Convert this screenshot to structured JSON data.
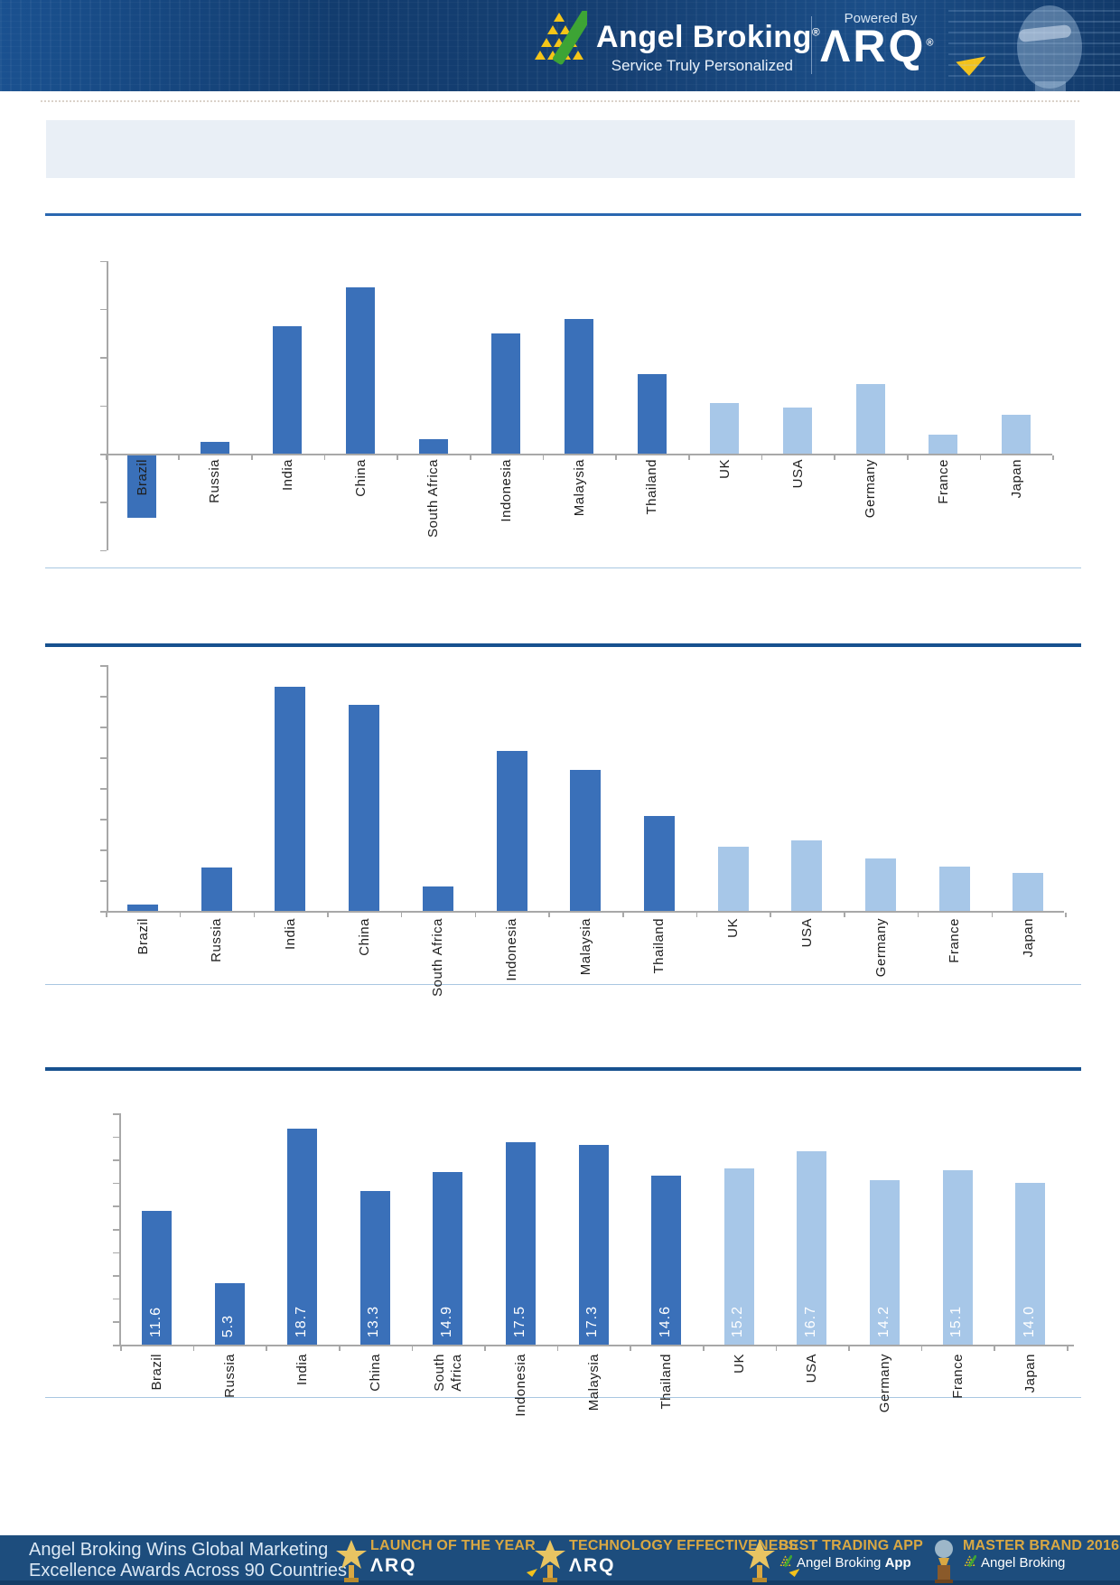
{
  "header": {
    "brand": "Angel Broking",
    "registered": "®",
    "tagline": "Service Truly Personalized",
    "powered_by": "Powered By",
    "arq_logo_text": "ΛRQ",
    "arq_registered": "®",
    "colors": {
      "header_bg": "#143f72",
      "arq_arrow": "#f2c21c"
    }
  },
  "title_box": {
    "text": ""
  },
  "chart_data": [
    {
      "type": "bar",
      "title": "",
      "categories": [
        "Brazil",
        "Russia",
        "India",
        "China",
        "South Africa",
        "Indonesia",
        "Malaysia",
        "Thailand",
        "UK",
        "USA",
        "Germany",
        "France",
        "Japan"
      ],
      "values": [
        -2.6,
        0.5,
        5.3,
        6.9,
        0.6,
        5.0,
        5.6,
        3.3,
        2.1,
        1.9,
        2.9,
        0.8,
        1.6
      ],
      "xlabel": "",
      "ylabel": "",
      "ylim": [
        -4,
        8
      ],
      "tick_step": 2,
      "grid": false,
      "legend": "none",
      "value_labels": false,
      "dark_count": 8,
      "colors": {
        "dark": "#3a70b9",
        "light": "#a7c7e8"
      }
    },
    {
      "type": "bar",
      "title": "",
      "categories": [
        "Brazil",
        "Russia",
        "India",
        "China",
        "South Africa",
        "Indonesia",
        "Malaysia",
        "Thailand",
        "UK",
        "USA",
        "Germany",
        "France",
        "Japan"
      ],
      "values": [
        0.2,
        1.4,
        7.3,
        6.7,
        0.8,
        5.2,
        4.6,
        3.1,
        2.1,
        2.3,
        1.7,
        1.45,
        1.25
      ],
      "xlabel": "",
      "ylabel": "",
      "ylim": [
        0,
        8
      ],
      "tick_step": 1,
      "grid": false,
      "legend": "none",
      "value_labels": false,
      "dark_count": 8,
      "colors": {
        "dark": "#3a70b9",
        "light": "#a7c7e8"
      }
    },
    {
      "type": "bar",
      "title": "",
      "categories": [
        "Brazil",
        "Russia",
        "India",
        "China",
        "South Africa",
        "Indonesia",
        "Malaysia",
        "Thailand",
        "UK",
        "USA",
        "Germany",
        "France",
        "Japan"
      ],
      "values": [
        11.6,
        5.3,
        18.7,
        13.3,
        14.9,
        17.5,
        17.3,
        14.6,
        15.2,
        16.7,
        14.2,
        15.1,
        14.0
      ],
      "value_label_texts": [
        "11.6",
        "5.3",
        "18.7",
        "13.3",
        "14.9",
        "17.5",
        "17.3",
        "14.6",
        "15.2",
        "16.7",
        "14.2",
        "15.1",
        "14.0"
      ],
      "xlabel": "",
      "ylabel": "",
      "ylim": [
        0,
        20
      ],
      "tick_step": 2,
      "grid": false,
      "legend": "none",
      "value_labels": true,
      "dark_count": 8,
      "colors": {
        "dark": "#3a70b9",
        "light": "#a7c7e8"
      }
    }
  ],
  "footer": {
    "headline": [
      "Angel Broking Wins Global Marketing",
      "Excellence Awards Across 90 Countries"
    ],
    "awards": [
      {
        "icon": "star-trophy-icon",
        "title": "LAUNCH OF THE YEAR",
        "sub": "ΛRQ",
        "style": "arq"
      },
      {
        "icon": "star-trophy-icon",
        "title": "TECHNOLOGY EFFECTIVENESS",
        "sub": "ΛRQ",
        "style": "arq"
      },
      {
        "icon": "star-trophy-icon",
        "title": "BEST TRADING APP",
        "sub_prefix": "Angel Broking ",
        "sub_bold": "App",
        "style": "app"
      },
      {
        "icon": "globe-trophy-icon",
        "title": "MASTER BRAND 2016",
        "sub_prefix": "Angel Broking",
        "sub_bold": "",
        "style": "app"
      }
    ],
    "colors": {
      "footer_bg": "#1d4d7d",
      "gold": "#d9a843"
    }
  }
}
